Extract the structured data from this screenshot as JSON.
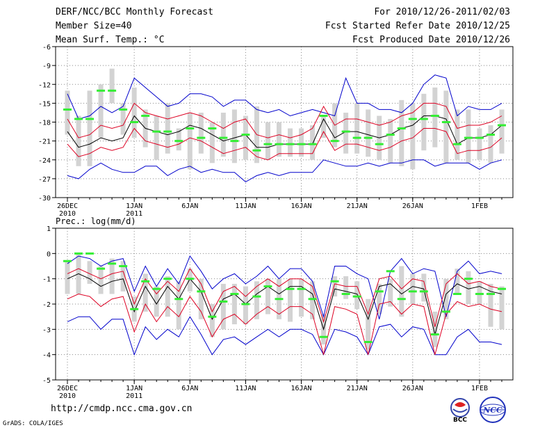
{
  "header": {
    "left_line1": "DERF/NCC/BCC Monthly Forecast",
    "left_line2": "Member Size=40",
    "left_line3": "Mean Surf. Temp.: °C",
    "right_line1": "For 2010/12/26-2011/02/03",
    "right_line2": "Fcst Started Refer Date 2010/12/25",
    "right_line3": "Fcst Produced Date 2010/12/26"
  },
  "footer": {
    "url": "http://cmdp.ncc.cma.gov.cn",
    "grads": "GrADS: COLA/IGES"
  },
  "logos": {
    "left_text": "BCC",
    "right_text": "NCC"
  },
  "colors": {
    "envelope": "#0000cc",
    "quartile": "#dd0022",
    "median": "#000000",
    "obs": "#33ee33",
    "box": "#d3d3d3",
    "grid": "#888888"
  },
  "chart_data": [
    {
      "type": "line",
      "title": "Mean Surf. Temp.: °C",
      "ylim": [
        -30,
        -6
      ],
      "yticks": [
        -6,
        -9,
        -12,
        -15,
        -18,
        -21,
        -24,
        -27,
        -30
      ],
      "x": [
        1,
        2,
        3,
        4,
        5,
        6,
        7,
        8,
        9,
        10,
        11,
        12,
        13,
        14,
        15,
        16,
        17,
        18,
        19,
        20,
        21,
        22,
        23,
        24,
        25,
        26,
        27,
        28,
        29,
        30,
        31,
        32,
        33,
        34,
        35,
        36,
        37,
        38,
        39,
        40
      ],
      "xtick_labels": [
        {
          "day": 1,
          "line1": "26DEC",
          "line2": "2010"
        },
        {
          "day": 7,
          "line1": "1JAN",
          "line2": "2011"
        },
        {
          "day": 12,
          "line1": "6JAN",
          "line2": ""
        },
        {
          "day": 17,
          "line1": "11JAN",
          "line2": ""
        },
        {
          "day": 22,
          "line1": "16JAN",
          "line2": ""
        },
        {
          "day": 27,
          "line1": "21JAN",
          "line2": ""
        },
        {
          "day": 32,
          "line1": "26JAN",
          "line2": ""
        },
        {
          "day": 38,
          "line1": "1FEB",
          "line2": ""
        }
      ],
      "series": [
        {
          "name": "max",
          "values": [
            -13.5,
            -17.5,
            -17,
            -15.5,
            -16.5,
            -15.5,
            -11,
            -12.5,
            -14,
            -15.5,
            -15,
            -13.5,
            -13.5,
            -14,
            -15.5,
            -14.5,
            -14.5,
            -16,
            -16.5,
            -16,
            -17,
            -16.5,
            -16,
            -16.5,
            -17,
            -11,
            -15,
            -15,
            -16,
            -16,
            -16.5,
            -15,
            -12,
            -10.5,
            -11,
            -17,
            -15.5,
            -16,
            -16,
            -15
          ]
        },
        {
          "name": "upper",
          "values": [
            -17.5,
            -20.5,
            -20,
            -18.5,
            -19,
            -18.5,
            -15,
            -16.5,
            -17,
            -17.5,
            -17,
            -16.5,
            -17,
            -18,
            -19,
            -18,
            -17.5,
            -20,
            -20.5,
            -20,
            -20.5,
            -20,
            -19,
            -15.5,
            -18.5,
            -17.5,
            -17.5,
            -18,
            -18.5,
            -18,
            -17,
            -16.5,
            -15,
            -15,
            -15.5,
            -19,
            -18.5,
            -18.5,
            -18,
            -17
          ]
        },
        {
          "name": "median",
          "values": [
            -19.5,
            -22,
            -21.5,
            -20.5,
            -21,
            -20.5,
            -17,
            -19,
            -19.5,
            -20,
            -19.5,
            -18.5,
            -19,
            -20,
            -21,
            -20.5,
            -20,
            -22,
            -22,
            -21.5,
            -21.5,
            -21.5,
            -21.5,
            -17.5,
            -20.5,
            -19.5,
            -19.5,
            -20,
            -20.5,
            -20,
            -19,
            -18.5,
            -17,
            -17,
            -17.5,
            -21.5,
            -20.5,
            -20.5,
            -20,
            -18.5
          ]
        },
        {
          "name": "lower",
          "values": [
            -21.5,
            -23.5,
            -23,
            -22,
            -22.5,
            -22,
            -19,
            -21,
            -21.5,
            -22,
            -21.5,
            -20.5,
            -21,
            -22,
            -23,
            -22.5,
            -22,
            -23.5,
            -24,
            -23,
            -23,
            -23,
            -23,
            -19.5,
            -22.5,
            -21.5,
            -21.5,
            -22,
            -22.5,
            -22,
            -21,
            -20.5,
            -19,
            -19,
            -19.5,
            -23,
            -22.5,
            -22.5,
            -22,
            -20.5
          ]
        },
        {
          "name": "min",
          "values": [
            -26.5,
            -27,
            -25.5,
            -24.5,
            -25.5,
            -26,
            -26,
            -25,
            -25,
            -26.5,
            -25.5,
            -25,
            -26,
            -25.5,
            -26,
            -26,
            -27.5,
            -26.5,
            -26,
            -26.5,
            -26,
            -26,
            -26,
            -24,
            -24.5,
            -25,
            -25,
            -24.5,
            -25,
            -24.5,
            -24.5,
            -24,
            -24,
            -25,
            -24.5,
            -24.5,
            -24.5,
            -25.5,
            -24.5,
            -24
          ]
        },
        {
          "name": "box_top",
          "values": [
            -13,
            -17,
            -13,
            -12,
            -9.5,
            -15,
            -12.5,
            -16,
            -17,
            -15,
            -19,
            -16.5,
            -16.5,
            -18,
            -16.5,
            -16,
            -17,
            -15.5,
            -18,
            -18,
            -19,
            -19,
            -18.5,
            -17,
            -15,
            -16.5,
            -15,
            -16,
            -17,
            -17.5,
            -14.5,
            -15,
            -13.5,
            -12.5,
            -13,
            -16,
            -16,
            -19,
            -18.5,
            -16
          ]
        },
        {
          "name": "box_bottom",
          "values": [
            -20,
            -25,
            -25,
            -20.5,
            -15,
            -20,
            -20.5,
            -22,
            -24,
            -23,
            -22.5,
            -25.5,
            -23,
            -24.5,
            -23.5,
            -24.5,
            -24,
            -24.5,
            -24,
            -23.5,
            -23.5,
            -23.5,
            -24,
            -20.5,
            -22,
            -23,
            -23,
            -23.5,
            -24,
            -24.5,
            -25,
            -25.5,
            -22.5,
            -22,
            -24.5,
            -24,
            -24.5,
            -24,
            -24.5,
            -23
          ]
        },
        {
          "name": "observed",
          "values": [
            -16,
            -17.5,
            -17.5,
            -13,
            -13,
            -16,
            -18,
            -17,
            -19.5,
            -19.5,
            -21,
            -19,
            -20.5,
            -19,
            -20.5,
            -21,
            -20,
            -22.5,
            -21.5,
            -21.5,
            -21.5,
            -21.5,
            -21.5,
            -17,
            -21,
            -19.5,
            -20.5,
            -20.5,
            -21.5,
            -20,
            -19,
            -17.5,
            -17.5,
            -17,
            -18,
            -21.5,
            -20.5,
            -20.5,
            -20,
            -18.5
          ]
        }
      ]
    },
    {
      "type": "line",
      "title": "Prec.: log(mm/d)",
      "ylim": [
        -5,
        1
      ],
      "yticks": [
        1,
        0,
        -1,
        -2,
        -3,
        -4,
        -5
      ],
      "x": [
        1,
        2,
        3,
        4,
        5,
        6,
        7,
        8,
        9,
        10,
        11,
        12,
        13,
        14,
        15,
        16,
        17,
        18,
        19,
        20,
        21,
        22,
        23,
        24,
        25,
        26,
        27,
        28,
        29,
        30,
        31,
        32,
        33,
        34,
        35,
        36,
        37,
        38,
        39,
        40
      ],
      "xtick_labels": [
        {
          "day": 1,
          "line1": "26DEC",
          "line2": "2010"
        },
        {
          "day": 7,
          "line1": "1JAN",
          "line2": "2011"
        },
        {
          "day": 12,
          "line1": "6JAN",
          "line2": ""
        },
        {
          "day": 17,
          "line1": "11JAN",
          "line2": ""
        },
        {
          "day": 22,
          "line1": "16JAN",
          "line2": ""
        },
        {
          "day": 27,
          "line1": "21JAN",
          "line2": ""
        },
        {
          "day": 32,
          "line1": "26JAN",
          "line2": ""
        },
        {
          "day": 38,
          "line1": "1FEB",
          "line2": ""
        }
      ],
      "series": [
        {
          "name": "max",
          "values": [
            -0.4,
            -0.1,
            -0.2,
            -0.5,
            -0.3,
            -0.2,
            -1.5,
            -0.5,
            -1.3,
            -0.6,
            -1.2,
            -0.1,
            -0.7,
            -1.4,
            -1.0,
            -0.8,
            -1.2,
            -0.9,
            -0.5,
            -1.0,
            -0.6,
            -0.6,
            -1.1,
            -2.5,
            -0.5,
            -0.5,
            -0.8,
            -1.0,
            -2.6,
            -0.7,
            -0.2,
            -0.8,
            -0.6,
            -0.7,
            -2.5,
            -0.7,
            -0.3,
            -0.8,
            -0.7,
            -0.8
          ]
        },
        {
          "name": "upper",
          "values": [
            -0.8,
            -0.6,
            -0.8,
            -1.0,
            -0.8,
            -0.7,
            -2.0,
            -1.0,
            -1.6,
            -1.1,
            -1.5,
            -0.6,
            -1.2,
            -2.3,
            -1.5,
            -1.3,
            -1.7,
            -1.3,
            -1.0,
            -1.3,
            -1.0,
            -1.0,
            -1.3,
            -2.7,
            -1.2,
            -1.3,
            -1.3,
            -2.4,
            -1.0,
            -0.9,
            -1.4,
            -1.0,
            -1.1,
            -2.9,
            -1.2,
            -0.8,
            -1.2,
            -1.1,
            -1.3,
            -1.4
          ]
        },
        {
          "name": "median",
          "values": [
            -1.0,
            -0.8,
            -1.0,
            -1.3,
            -1.1,
            -1.0,
            -2.3,
            -1.3,
            -2.0,
            -1.3,
            -1.8,
            -1.0,
            -1.5,
            -2.6,
            -1.8,
            -1.6,
            -2.0,
            -1.6,
            -1.3,
            -1.6,
            -1.3,
            -1.3,
            -1.6,
            -3.0,
            -1.4,
            -1.5,
            -1.6,
            -2.6,
            -1.3,
            -1.2,
            -1.6,
            -1.3,
            -1.4,
            -3.2,
            -1.6,
            -1.2,
            -1.4,
            -1.3,
            -1.5,
            -1.6
          ]
        },
        {
          "name": "lower",
          "values": [
            -1.3,
            -1.2,
            -1.3,
            -1.7,
            -1.4,
            -1.3,
            -2.7,
            -1.6,
            -2.3,
            -1.7,
            -2.1,
            -1.3,
            -1.9,
            -3.1,
            -2.2,
            -2.0,
            -2.4,
            -2.0,
            -1.7,
            -2.0,
            -1.7,
            -1.7,
            -2.0,
            -3.6,
            -1.7,
            -1.8,
            -2.0,
            -3.3,
            -1.6,
            -1.5,
            -2.0,
            -1.6,
            -1.7,
            -3.6,
            -2.0,
            -1.5,
            -1.7,
            -1.6,
            -1.8,
            -1.9
          ]
        },
        {
          "name": "min",
          "values": [
            -1.8,
            -1.6,
            -1.7,
            -2.1,
            -1.8,
            -1.7,
            -3.1,
            -2.0,
            -2.7,
            -2.1,
            -2.5,
            -1.7,
            -2.3,
            -3.3,
            -2.6,
            -2.4,
            -2.8,
            -2.4,
            -2.1,
            -2.4,
            -2.1,
            -2.1,
            -2.4,
            -4.0,
            -2.1,
            -2.2,
            -2.4,
            -4.0,
            -2.0,
            -1.9,
            -2.4,
            -2.0,
            -2.1,
            -4.0,
            -2.4,
            -1.9,
            -2.1,
            -2.0,
            -2.2,
            -2.3
          ]
        },
        {
          "name": "bottom_env",
          "values": [
            -2.7,
            -2.5,
            -2.5,
            -3.0,
            -2.6,
            -2.6,
            -4.0,
            -2.9,
            -3.4,
            -3.0,
            -3.3,
            -2.5,
            -3.2,
            -4.0,
            -3.4,
            -3.3,
            -3.6,
            -3.3,
            -3.0,
            -3.3,
            -3.0,
            -3.0,
            -3.2,
            -4.0,
            -3.0,
            -3.1,
            -3.3,
            -4.0,
            -2.9,
            -2.8,
            -3.3,
            -2.9,
            -3.0,
            -4.0,
            -4.0,
            -3.3,
            -3.0,
            -3.5,
            -3.5,
            -3.6
          ]
        },
        {
          "name": "box_top",
          "values": [
            -0.3,
            0.0,
            -0.3,
            -0.5,
            -0.2,
            -0.3,
            -1.7,
            -0.8,
            -1.3,
            -0.9,
            -1.1,
            -0.6,
            -1.0,
            -2.0,
            -1.2,
            -1.2,
            -1.3,
            -1.1,
            -1.0,
            -1.0,
            -1.0,
            -1.0,
            -1.1,
            -2.4,
            -0.9,
            -0.9,
            -1.1,
            -1.8,
            -1.2,
            -1.0,
            -0.5,
            -0.8,
            -0.8,
            -2.3,
            -1.0,
            -0.6,
            -0.7,
            -1.1,
            -1.2,
            -1.3
          ]
        },
        {
          "name": "box_bottom",
          "values": [
            -1.6,
            -1.6,
            -1.2,
            -1.6,
            -1.6,
            -1.5,
            -2.7,
            -2.3,
            -2.5,
            -2.5,
            -3.0,
            -1.5,
            -2.6,
            -3.3,
            -3.0,
            -2.8,
            -2.8,
            -2.6,
            -2.4,
            -2.6,
            -2.7,
            -2.5,
            -2.6,
            -3.6,
            -1.7,
            -1.8,
            -2.2,
            -3.8,
            -2.4,
            -2.1,
            -2.5,
            -2.0,
            -1.9,
            -3.7,
            -2.6,
            -1.6,
            -2.0,
            -2.0,
            -2.9,
            -3.0
          ]
        },
        {
          "name": "observed",
          "values": [
            -0.3,
            0.0,
            0.0,
            -0.6,
            -0.4,
            -0.5,
            -2.2,
            -1.1,
            -1.4,
            -1.0,
            -1.8,
            -1.0,
            -1.5,
            -2.5,
            -1.9,
            -1.6,
            -2.0,
            -1.7,
            -1.3,
            -1.8,
            -1.4,
            -1.4,
            -1.8,
            -3.3,
            -1.1,
            -1.6,
            -1.7,
            -3.5,
            -1.5,
            -0.7,
            -1.8,
            -1.5,
            -1.5,
            -3.2,
            -2.3,
            -1.6,
            -1.0,
            -1.6,
            -1.6,
            -1.4
          ]
        }
      ]
    }
  ]
}
